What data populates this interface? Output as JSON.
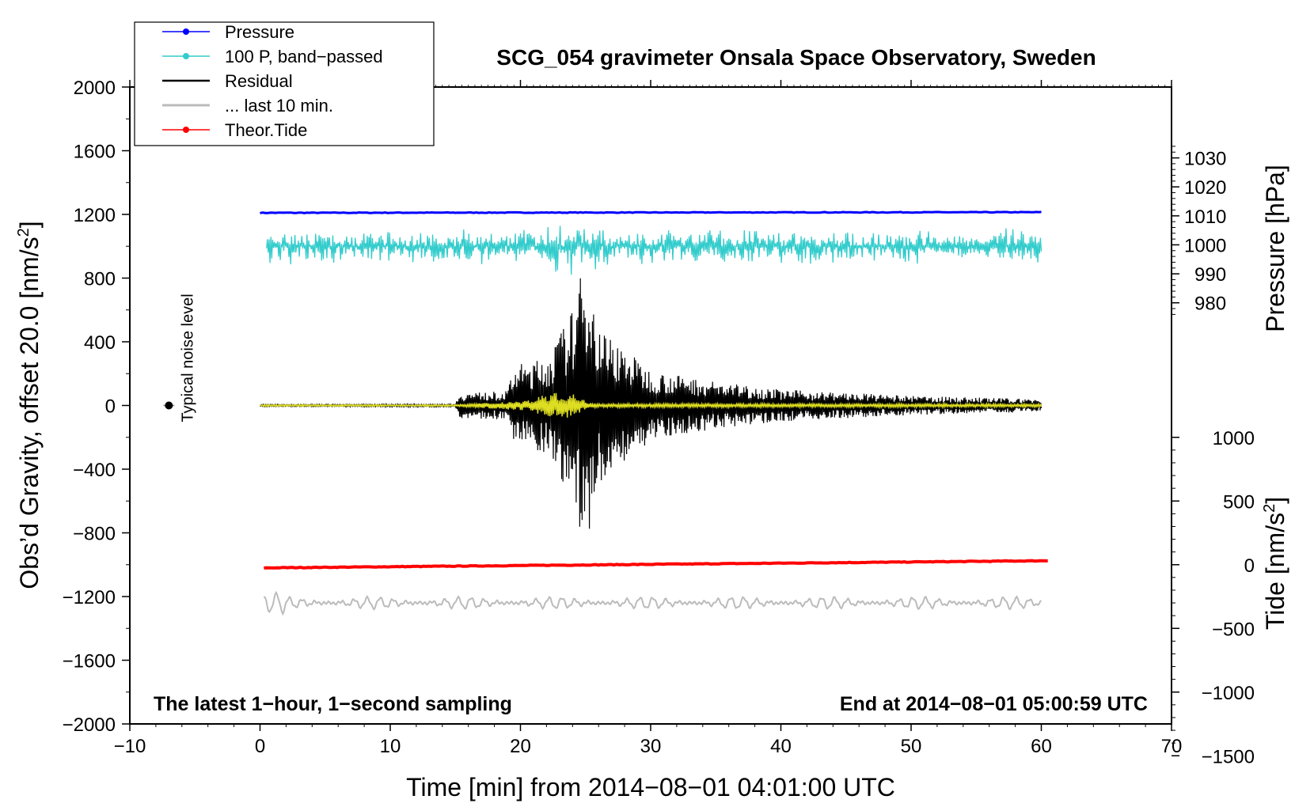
{
  "chart_data": {
    "type": "line",
    "title": "SCG_054 gravimeter Onsala Space Observatory, Sweden",
    "xlabel": "Time [min] from 2014−08−01 04:01:00 UTC",
    "ylabel_left": "Obs’d Gravity, offset 20.0 [nm/s",
    "ylabel_left_sup": "2",
    "ylabel_left_end": "]",
    "ylabel_right_pressure": "Pressure [hPa]",
    "ylabel_right_tide": "Tide [nm/s",
    "ylabel_right_tide_sup": "2",
    "ylabel_right_tide_end": "]",
    "xlim": [
      -10,
      70
    ],
    "ylim_left": [
      -2000,
      2000
    ],
    "x_ticks": [
      {
        "value": -10,
        "label": "−10"
      },
      {
        "value": 0,
        "label": "0"
      },
      {
        "value": 10,
        "label": "10"
      },
      {
        "value": 20,
        "label": "20"
      },
      {
        "value": 30,
        "label": "30"
      },
      {
        "value": 40,
        "label": "40"
      },
      {
        "value": 50,
        "label": "50"
      },
      {
        "value": 60,
        "label": "60"
      },
      {
        "value": 70,
        "label": "70"
      }
    ],
    "left_ticks": [
      {
        "value": 2000,
        "label": "2000"
      },
      {
        "value": 1600,
        "label": "1600"
      },
      {
        "value": 1200,
        "label": "1200"
      },
      {
        "value": 800,
        "label": "800"
      },
      {
        "value": 400,
        "label": "400"
      },
      {
        "value": 0,
        "label": "0"
      },
      {
        "value": -400,
        "label": "−400"
      },
      {
        "value": -800,
        "label": "−800"
      },
      {
        "value": -1200,
        "label": "−1200"
      },
      {
        "value": -1600,
        "label": "−1600"
      },
      {
        "value": -2000,
        "label": "−2000"
      }
    ],
    "pressure_axis": {
      "ticks": [
        {
          "value": 1030,
          "label": "1030"
        },
        {
          "value": 1020,
          "label": "1020"
        },
        {
          "value": 1010,
          "label": "1010"
        },
        {
          "value": 1000,
          "label": "1000"
        },
        {
          "value": 990,
          "label": "990"
        },
        {
          "value": 980,
          "label": "980"
        }
      ],
      "left_at_value": 1010.5,
      "left_ref": 1200,
      "left_units_per_hpa": 18.2
    },
    "tide_axis": {
      "ticks": [
        {
          "value": 1000,
          "label": "1000"
        },
        {
          "value": 500,
          "label": "500"
        },
        {
          "value": 0,
          "label": "0"
        },
        {
          "value": -500,
          "label": "−500"
        },
        {
          "value": -1000,
          "label": "−1000"
        },
        {
          "value": -1500,
          "label": "−1500"
        }
      ],
      "left_at_zero": -1000,
      "left_units_per_nm": 0.8
    },
    "legend": [
      {
        "name": "Pressure",
        "color": "#0000ff",
        "marker": true
      },
      {
        "name": "100 P, band−passed",
        "color": "#33cccc",
        "marker": true
      },
      {
        "name": "Residual",
        "color": "#000000",
        "marker": false
      },
      {
        "name": "... last 10 min.",
        "color": "#bbbbbb",
        "marker": false
      },
      {
        "name": "Theor.Tide",
        "color": "#ff0000",
        "marker": true
      }
    ],
    "series": [
      {
        "name": "Pressure",
        "color": "#0000ff",
        "x_range": [
          0,
          60
        ],
        "values_left_units": [
          1210,
          1214
        ],
        "note": "≈1010.5 hPa, nearly flat"
      },
      {
        "name": "100 P, band−passed",
        "color": "#33cccc",
        "x_range": [
          0.5,
          60
        ],
        "center_left_units": 1000,
        "amplitude_left_units": 120
      },
      {
        "name": "Residual",
        "color": "#000000",
        "x_range": [
          0,
          60
        ],
        "center_left_units": 0,
        "envelope": [
          {
            "x": 0,
            "amp": 6
          },
          {
            "x": 15,
            "amp": 8
          },
          {
            "x": 15.3,
            "amp": 80
          },
          {
            "x": 19,
            "amp": 90
          },
          {
            "x": 19.5,
            "amp": 250
          },
          {
            "x": 22,
            "amp": 300
          },
          {
            "x": 24,
            "amp": 600
          },
          {
            "x": 25,
            "amp": 950
          },
          {
            "x": 26,
            "amp": 500
          },
          {
            "x": 30,
            "amp": 220
          },
          {
            "x": 35,
            "amp": 150
          },
          {
            "x": 40,
            "amp": 100
          },
          {
            "x": 50,
            "amp": 60
          },
          {
            "x": 60,
            "amp": 40
          }
        ]
      },
      {
        "name": "Yellow overlay",
        "color": "#dddd22",
        "x_range": [
          0,
          60
        ],
        "center_left_units": 0,
        "envelope": [
          {
            "x": 0,
            "amp": 5
          },
          {
            "x": 15,
            "amp": 5
          },
          {
            "x": 20,
            "amp": 30
          },
          {
            "x": 21,
            "amp": 40
          },
          {
            "x": 22,
            "amp": 80
          },
          {
            "x": 24,
            "amp": 75
          },
          {
            "x": 25,
            "amp": 30
          },
          {
            "x": 26,
            "amp": 12
          },
          {
            "x": 60,
            "amp": 10
          }
        ]
      },
      {
        "name": "... last 10 min.",
        "color": "#bbbbbb",
        "x_range": [
          0.3,
          60
        ],
        "center_left_units": -1240,
        "amplitude_left_units": 45
      },
      {
        "name": "Theor.Tide",
        "color": "#ff0000",
        "x_range": [
          0.3,
          60.5
        ],
        "values_left_units": [
          -1020,
          -975
        ],
        "note": "tide ≈ −25 to 30 nm/s²"
      }
    ],
    "noise_marker": {
      "x": -7,
      "y": 0,
      "error": 8,
      "label": "Typical noise level"
    },
    "footnote_left": "The latest 1−hour, 1−second sampling",
    "footnote_right": "End at 2014−08−01 05:00:59 UTC"
  }
}
